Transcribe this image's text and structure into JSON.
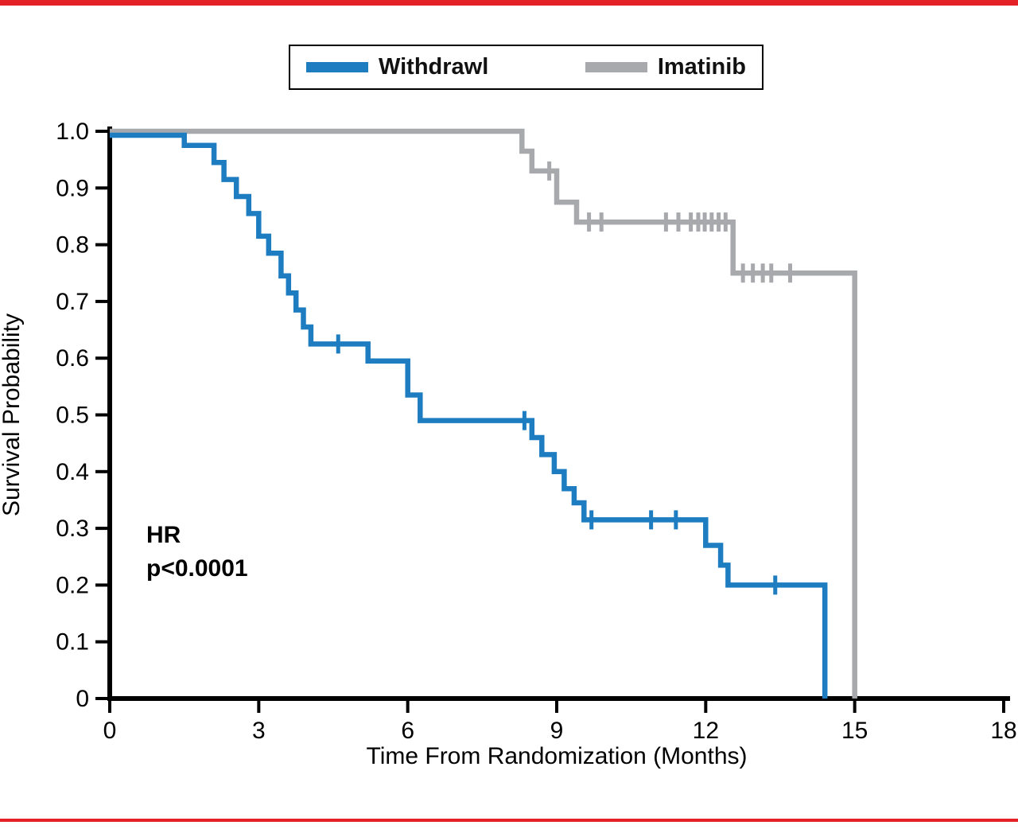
{
  "figure": {
    "rule_color": "#e32126",
    "background": "#ffffff",
    "axis_color": "#000000",
    "text_color": "#000000"
  },
  "legend": {
    "items": [
      {
        "label": "Withdrawl",
        "color": "#1e7dc0"
      },
      {
        "label": "Imatinib",
        "color": "#a7a9ac"
      }
    ]
  },
  "chart_data": {
    "type": "line",
    "variant": "kaplan_meier_step",
    "title": "",
    "xlabel": "Time From Randomization (Months)",
    "ylabel": "Survival Probability",
    "xlim": [
      0,
      18
    ],
    "ylim": [
      0,
      1.0
    ],
    "x_ticks": [
      0,
      3,
      6,
      9,
      12,
      15,
      18
    ],
    "y_tick_labels": [
      "0",
      "0.1",
      "0.2",
      "0.3",
      "0.4",
      "0.5",
      "0.6",
      "0.7",
      "0.8",
      "0.9",
      "1.0"
    ],
    "grid": false,
    "legend_position": "top-center",
    "annotation": {
      "lines": [
        "HR",
        "p<0.0001"
      ]
    },
    "series": [
      {
        "name": "Withdrawl",
        "color": "#1e7dc0",
        "steps": [
          [
            0,
            0.993
          ],
          [
            1.5,
            0.975
          ],
          [
            2.1,
            0.945
          ],
          [
            2.3,
            0.915
          ],
          [
            2.55,
            0.885
          ],
          [
            2.8,
            0.855
          ],
          [
            3.0,
            0.815
          ],
          [
            3.2,
            0.785
          ],
          [
            3.45,
            0.745
          ],
          [
            3.6,
            0.715
          ],
          [
            3.75,
            0.685
          ],
          [
            3.9,
            0.655
          ],
          [
            4.05,
            0.625
          ],
          [
            5.2,
            0.595
          ],
          [
            6.0,
            0.535
          ],
          [
            6.25,
            0.49
          ],
          [
            8.5,
            0.46
          ],
          [
            8.7,
            0.43
          ],
          [
            8.95,
            0.4
          ],
          [
            9.15,
            0.37
          ],
          [
            9.35,
            0.345
          ],
          [
            9.55,
            0.315
          ],
          [
            12.0,
            0.27
          ],
          [
            12.3,
            0.235
          ],
          [
            12.45,
            0.2
          ],
          [
            14.4,
            0
          ]
        ],
        "censors": [
          [
            4.6,
            0.625
          ],
          [
            8.35,
            0.49
          ],
          [
            9.7,
            0.315
          ],
          [
            10.9,
            0.315
          ],
          [
            11.4,
            0.315
          ],
          [
            13.4,
            0.2
          ]
        ]
      },
      {
        "name": "Imatinib",
        "color": "#a7a9ac",
        "steps": [
          [
            0,
            1.0
          ],
          [
            8.3,
            0.965
          ],
          [
            8.5,
            0.93
          ],
          [
            9.0,
            0.875
          ],
          [
            9.4,
            0.84
          ],
          [
            12.55,
            0.75
          ],
          [
            15.0,
            0
          ]
        ],
        "censors": [
          [
            8.85,
            0.93
          ],
          [
            9.65,
            0.84
          ],
          [
            9.9,
            0.84
          ],
          [
            11.2,
            0.84
          ],
          [
            11.45,
            0.84
          ],
          [
            11.7,
            0.84
          ],
          [
            11.85,
            0.84
          ],
          [
            11.98,
            0.84
          ],
          [
            12.12,
            0.84
          ],
          [
            12.26,
            0.84
          ],
          [
            12.4,
            0.84
          ],
          [
            12.75,
            0.75
          ],
          [
            12.95,
            0.75
          ],
          [
            13.15,
            0.75
          ],
          [
            13.32,
            0.75
          ],
          [
            13.7,
            0.75
          ]
        ]
      }
    ]
  }
}
